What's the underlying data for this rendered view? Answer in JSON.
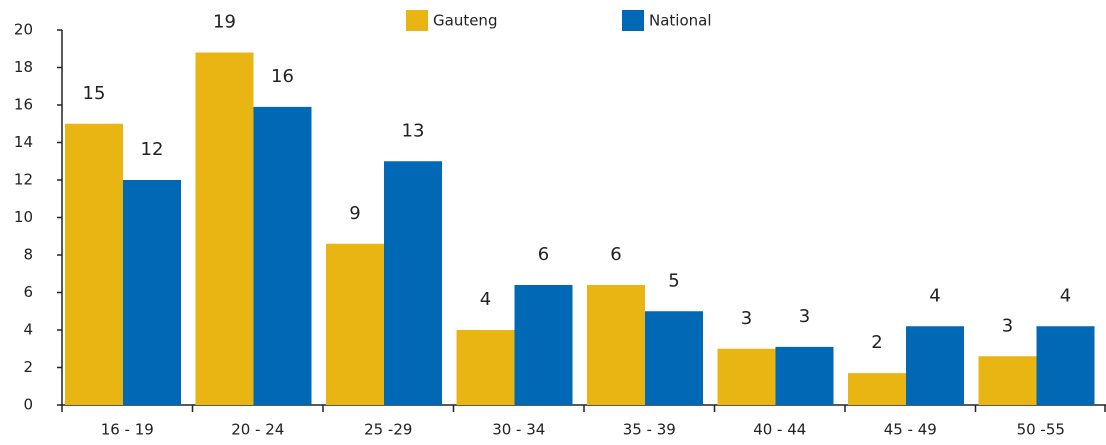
{
  "chart_data": {
    "type": "bar",
    "categories": [
      "16 - 19",
      "20 - 24",
      "25 -29",
      "30 - 34",
      "35 - 39",
      "40 - 44",
      "45 - 49",
      "50 -55"
    ],
    "series": [
      {
        "name": "Gauteng",
        "color": "#e8b513",
        "values": [
          15.0,
          18.8,
          8.6,
          4.0,
          6.4,
          3.0,
          1.7,
          2.6
        ],
        "value_labels": [
          "15",
          "19",
          "9",
          "4",
          "6",
          "3",
          "2",
          "3"
        ]
      },
      {
        "name": "National",
        "color": "#0068b4",
        "values": [
          12.0,
          15.9,
          13.0,
          6.4,
          5.0,
          3.1,
          4.2,
          4.2
        ],
        "value_labels": [
          "12",
          "16",
          "13",
          "6",
          "5",
          "3",
          "4",
          "4"
        ]
      }
    ],
    "ylim": [
      0,
      20
    ],
    "yticks": [
      0,
      2,
      4,
      6,
      8,
      10,
      12,
      14,
      16,
      18,
      20
    ],
    "grid": false,
    "legend": "top"
  }
}
